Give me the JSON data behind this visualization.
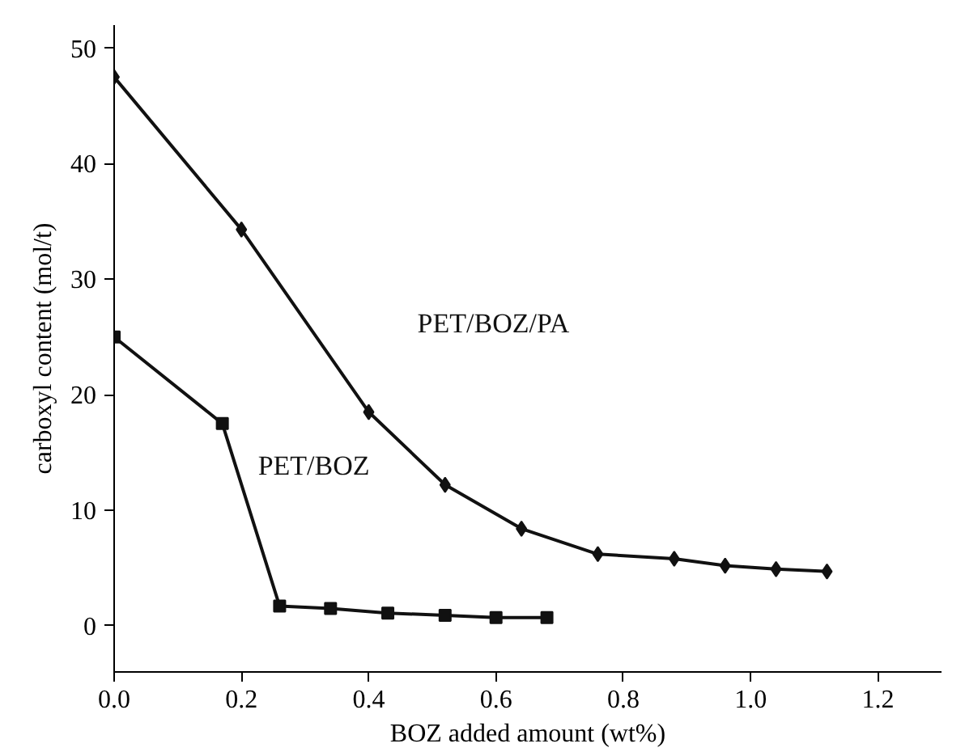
{
  "chart_data": {
    "type": "line",
    "xlabel": "BOZ added amount (wt%)",
    "ylabel": "carboxyl content (mol/t)",
    "xlim": [
      0,
      1.3
    ],
    "ylim": [
      -4,
      52
    ],
    "xticks": [
      {
        "value": 0,
        "label": "0.0"
      },
      0.2,
      0.4,
      0.6,
      0.8,
      {
        "value": 1,
        "label": "1.0"
      },
      1.2
    ],
    "yticks": [
      0,
      10,
      20,
      30,
      40,
      50
    ],
    "grid": false,
    "series": [
      {
        "name": "PET/BOZ/PA",
        "color": "#111111",
        "marker": "diamond",
        "x": [
          0,
          0.2,
          0.4,
          0.52,
          0.64,
          0.76,
          0.88,
          0.96,
          1.04,
          1.12
        ],
        "values": [
          47.5,
          34.3,
          18.5,
          12.2,
          8.4,
          6.2,
          5.8,
          5.2,
          4.9,
          4.7
        ]
      },
      {
        "name": "PET/BOZ",
        "color": "#111111",
        "marker": "square",
        "x": [
          0,
          0.17,
          0.26,
          0.34,
          0.43,
          0.52,
          0.6,
          0.68
        ],
        "values": [
          25,
          17.5,
          1.7,
          1.5,
          1.1,
          0.9,
          0.7,
          0.7
        ]
      }
    ]
  }
}
